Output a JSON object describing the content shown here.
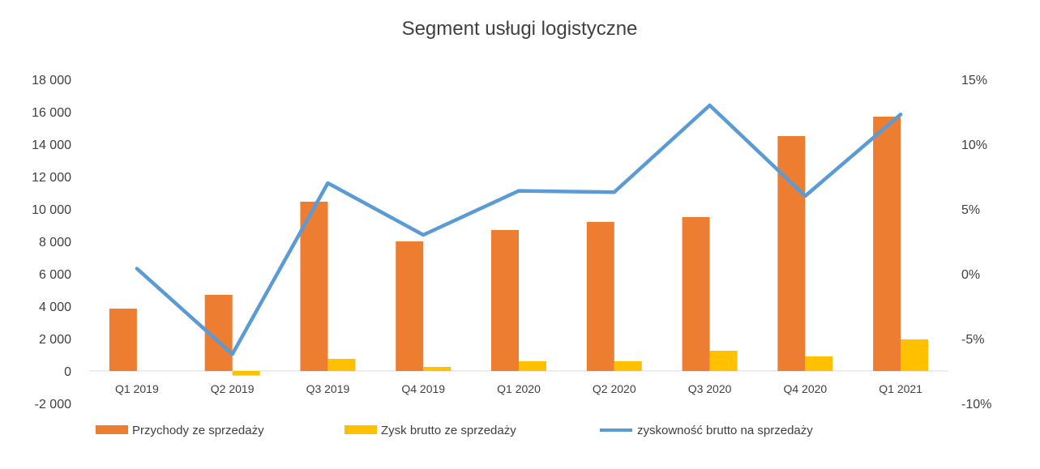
{
  "chart_data": {
    "type": "bar",
    "title": "Segment usługi logistyczne",
    "categories": [
      "Q1 2019",
      "Q2 2019",
      "Q3 2019",
      "Q4 2019",
      "Q1 2020",
      "Q2 2020",
      "Q3 2020",
      "Q4 2020",
      "Q1 2021"
    ],
    "series": [
      {
        "name": "Przychody ze sprzedaży",
        "type": "bar",
        "axis": "left",
        "color": "#ED7D31",
        "values": [
          3850,
          4700,
          10450,
          8000,
          8700,
          9200,
          9500,
          14500,
          15700
        ]
      },
      {
        "name": "Zysk brutto ze sprzedaży",
        "type": "bar",
        "axis": "left",
        "color": "#FFC000",
        "values": [
          0,
          -280,
          750,
          250,
          600,
          600,
          1250,
          900,
          1950
        ]
      },
      {
        "name": "zyskowność brutto na sprzedaży",
        "type": "line",
        "axis": "right",
        "color": "#5B9BD5",
        "values": [
          0.4,
          -6.2,
          7.0,
          3.0,
          6.4,
          6.3,
          13.0,
          6.0,
          12.3
        ]
      }
    ],
    "y_left": {
      "min": -2000,
      "max": 18000,
      "step": 2000,
      "tick_labels": [
        "-2 000",
        "0",
        "2 000",
        "4 000",
        "6 000",
        "8 000",
        "10 000",
        "12 000",
        "14 000",
        "16 000",
        "18 000"
      ]
    },
    "y_right": {
      "min": -10,
      "max": 15,
      "step": 5,
      "tick_labels": [
        "-10%",
        "-5%",
        "0%",
        "5%",
        "10%",
        "15%"
      ]
    },
    "grid": false,
    "legend": "bottom"
  }
}
